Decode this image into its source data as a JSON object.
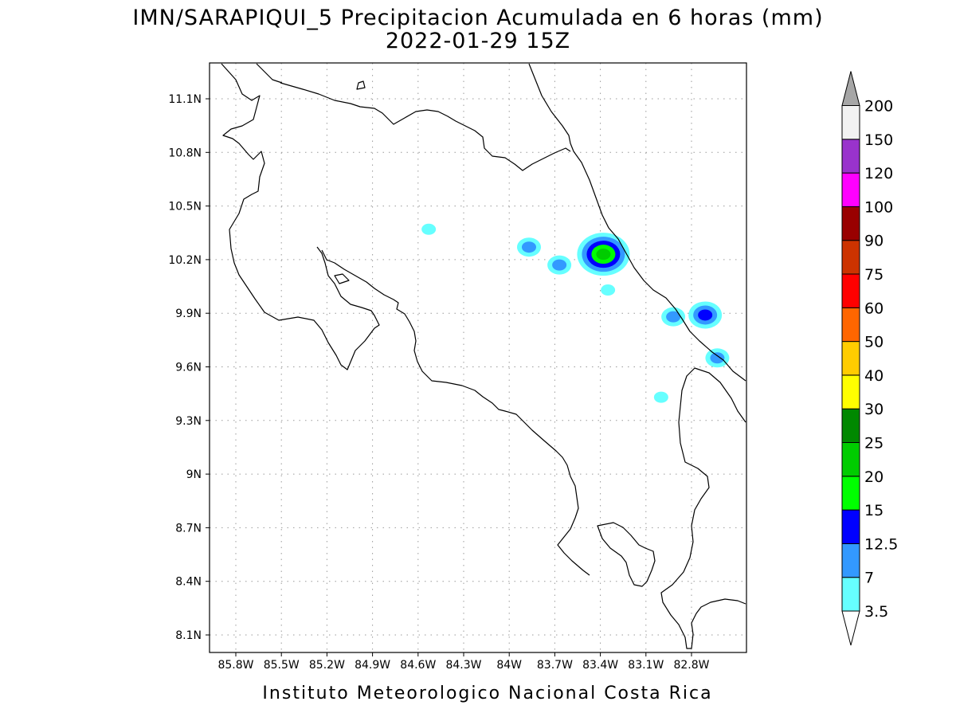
{
  "header": {
    "title_line1": "IMN/SARAPIQUI_5 Precipitacion Acumulada en 6 horas (mm)",
    "title_line2": "2022-01-29 15Z"
  },
  "footer": {
    "credit": "Instituto Meteorologico Nacional Costa Rica"
  },
  "map": {
    "lon_ticks": [
      "85.8W",
      "85.5W",
      "85.2W",
      "84.9W",
      "84.6W",
      "84.3W",
      "84W",
      "83.7W",
      "83.4W",
      "83.1W",
      "82.8W"
    ],
    "lat_ticks": [
      "11.1N",
      "10.8N",
      "10.5N",
      "10.2N",
      "9.9N",
      "9.6N",
      "9.3N",
      "9N",
      "8.7N",
      "8.4N",
      "8.1N"
    ],
    "grid": "dotted"
  },
  "colorbar": {
    "labels": [
      "3.5",
      "7",
      "12.5",
      "15",
      "20",
      "25",
      "30",
      "40",
      "50",
      "60",
      "75",
      "90",
      "100",
      "120",
      "150",
      "200"
    ],
    "colors": [
      "#ffffff",
      "#66ffff",
      "#3399ff",
      "#0000ff",
      "#00ff00",
      "#00cc00",
      "#008800",
      "#ffff00",
      "#ffcc00",
      "#ff6600",
      "#ff0000",
      "#cc3300",
      "#990000",
      "#ff00ff",
      "#9933cc",
      "#f2f2f2",
      "#a6a6a6"
    ]
  },
  "precip_cells": [
    {
      "lon": -84.53,
      "lat": 10.37,
      "max_mm": 3.5
    },
    {
      "lon": -83.87,
      "lat": 10.27,
      "max_mm": 7
    },
    {
      "lon": -83.67,
      "lat": 10.17,
      "max_mm": 7
    },
    {
      "lon": -83.38,
      "lat": 10.23,
      "max_mm": 20
    },
    {
      "lon": -83.35,
      "lat": 10.03,
      "max_mm": 3.5
    },
    {
      "lon": -82.92,
      "lat": 9.88,
      "max_mm": 7
    },
    {
      "lon": -82.71,
      "lat": 9.89,
      "max_mm": 12.5
    },
    {
      "lon": -82.63,
      "lat": 9.65,
      "max_mm": 7
    },
    {
      "lon": -83.0,
      "lat": 9.43,
      "max_mm": 3.5
    }
  ]
}
